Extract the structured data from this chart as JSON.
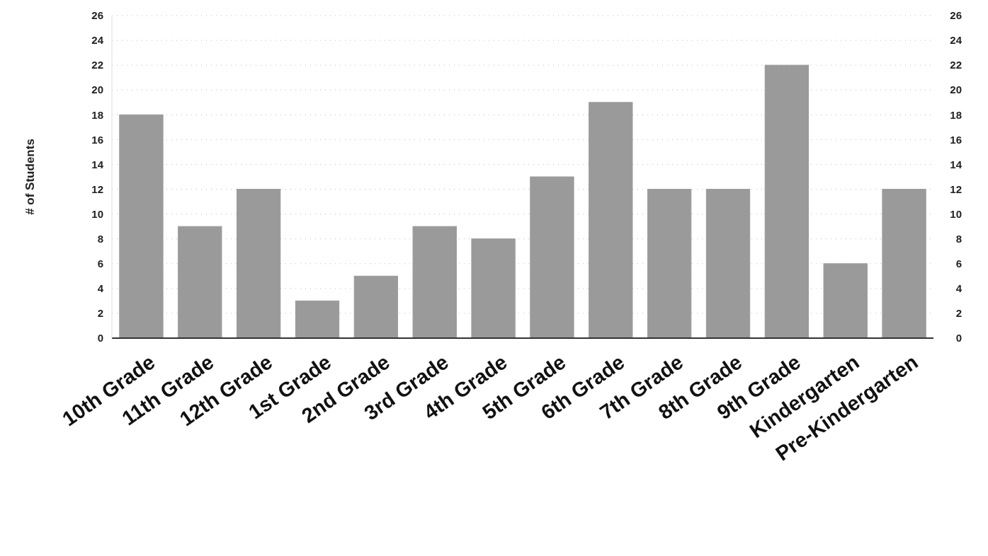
{
  "chart_data": {
    "type": "bar",
    "ylabel": "# of Students",
    "categories": [
      "10th Grade",
      "11th Grade",
      "12th Grade",
      "1st Grade",
      "2nd Grade",
      "3rd Grade",
      "4th Grade",
      "5th Grade",
      "6th Grade",
      "7th Grade",
      "8th Grade",
      "9th Grade",
      "Kindergarten",
      "Pre-Kindergarten"
    ],
    "values": [
      18,
      9,
      12,
      3,
      5,
      9,
      8,
      13,
      19,
      12,
      12,
      22,
      6,
      12
    ],
    "color": "#9a9a9a",
    "ylim": [
      0,
      26
    ],
    "yticks": [
      0,
      2,
      4,
      6,
      8,
      10,
      12,
      14,
      16,
      18,
      20,
      22,
      24,
      26
    ],
    "y2lim": [
      0,
      26
    ],
    "y2ticks": [
      0,
      2,
      4,
      6,
      8,
      10,
      12,
      14,
      16,
      18,
      20,
      22,
      24,
      26
    ],
    "grid": "y"
  }
}
